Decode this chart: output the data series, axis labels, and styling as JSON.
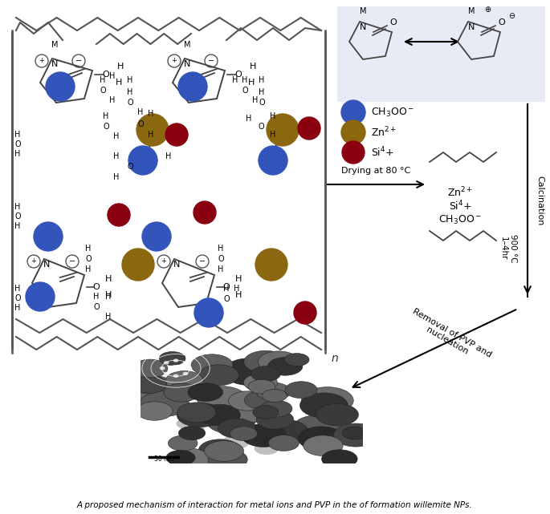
{
  "title": "A proposed mechanism of interaction for metal ions and PVP in the of formation willemite NPs.",
  "blue_color": "#3355BB",
  "gold_color": "#8B6810",
  "dark_red_color": "#8B0010",
  "pvp_box_color": "#E8EAF6",
  "background": "#ffffff",
  "legend": [
    {
      "label": "CH$_3$OO$^-$",
      "color": "#3355BB"
    },
    {
      "label": "Zn$^{2+}$",
      "color": "#8B6810"
    },
    {
      "label": "Si$^4$+",
      "color": "#8B0010"
    }
  ],
  "caption": "A proposed mechanism of interaction for metal ions and PVP in the of formation willemite NPs."
}
